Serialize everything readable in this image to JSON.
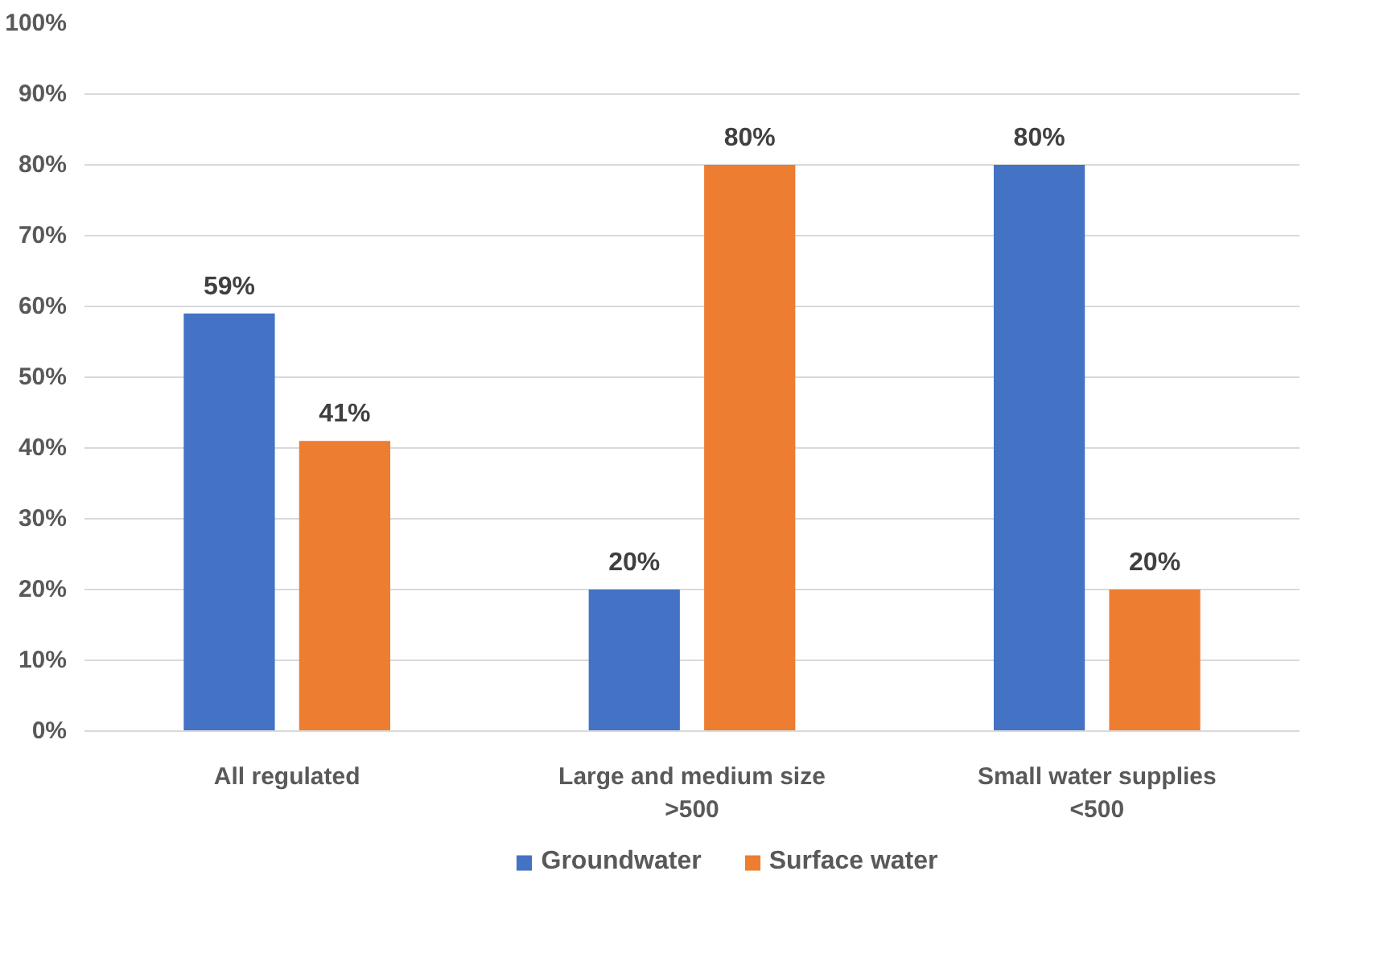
{
  "chart_data": {
    "type": "bar",
    "categories": [
      "All regulated",
      "Large and medium size\n>500",
      "Small water supplies\n<500"
    ],
    "series": [
      {
        "name": "Groundwater",
        "color": "#4472c4",
        "values": [
          59,
          20,
          80
        ]
      },
      {
        "name": "Surface water",
        "color": "#ed7d31",
        "values": [
          41,
          80,
          20
        ]
      }
    ],
    "ylim": [
      0,
      100
    ],
    "yticks": [
      {
        "value": 0,
        "label": "0%"
      },
      {
        "value": 10,
        "label": "10%"
      },
      {
        "value": 20,
        "label": "20%"
      },
      {
        "value": 30,
        "label": "30%"
      },
      {
        "value": 40,
        "label": "40%"
      },
      {
        "value": 50,
        "label": "50%"
      },
      {
        "value": 60,
        "label": "60%"
      },
      {
        "value": 70,
        "label": "70%"
      },
      {
        "value": 80,
        "label": "80%"
      },
      {
        "value": 90,
        "label": "90%"
      },
      {
        "value": 100,
        "label": "100%"
      }
    ],
    "value_labels": [
      [
        "59%",
        "20%",
        "80%"
      ],
      [
        "41%",
        "80%",
        "20%"
      ]
    ],
    "grid": "y",
    "legend": "bottom"
  }
}
